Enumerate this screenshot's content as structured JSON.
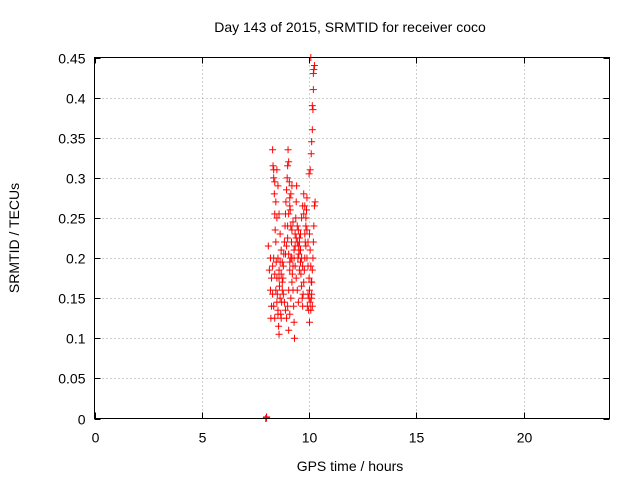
{
  "chart_data": {
    "type": "scatter",
    "title": "Day 143 of 2015, SRMTID for receiver coco",
    "xlabel": "GPS time / hours",
    "ylabel": "SRMTID / TECUs",
    "xlim": [
      0,
      24
    ],
    "ylim": [
      0,
      0.45
    ],
    "xticks": [
      0,
      5,
      10,
      15,
      20
    ],
    "yticks": [
      0,
      0.05,
      0.1,
      0.15,
      0.2,
      0.25,
      0.3,
      0.35,
      0.4,
      0.45
    ],
    "grid": true,
    "marker": "+",
    "color": "#ff0000",
    "series": [
      {
        "name": "SRMTID",
        "points": [
          [
            8.0,
            0.0
          ],
          [
            8.02,
            0.002
          ],
          [
            7.98,
            0.0
          ],
          [
            8.01,
            0.001
          ],
          [
            8.1,
            0.215
          ],
          [
            8.15,
            0.185
          ],
          [
            8.2,
            0.16
          ],
          [
            8.22,
            0.125
          ],
          [
            8.25,
            0.14
          ],
          [
            8.3,
            0.335
          ],
          [
            8.32,
            0.315
          ],
          [
            8.35,
            0.3
          ],
          [
            8.38,
            0.28
          ],
          [
            8.4,
            0.255
          ],
          [
            8.42,
            0.235
          ],
          [
            8.45,
            0.22
          ],
          [
            8.47,
            0.195
          ],
          [
            8.5,
            0.175
          ],
          [
            8.52,
            0.155
          ],
          [
            8.55,
            0.135
          ],
          [
            8.58,
            0.115
          ],
          [
            8.6,
            0.105
          ],
          [
            8.35,
            0.31
          ],
          [
            8.4,
            0.295
          ],
          [
            8.45,
            0.27
          ],
          [
            8.5,
            0.25
          ],
          [
            8.55,
            0.2
          ],
          [
            8.6,
            0.185
          ],
          [
            8.62,
            0.165
          ],
          [
            8.65,
            0.15
          ],
          [
            8.68,
            0.13
          ],
          [
            8.7,
            0.125
          ],
          [
            8.72,
            0.145
          ],
          [
            8.75,
            0.16
          ],
          [
            8.78,
            0.175
          ],
          [
            8.8,
            0.19
          ],
          [
            8.82,
            0.205
          ],
          [
            8.85,
            0.22
          ],
          [
            8.88,
            0.24
          ],
          [
            8.9,
            0.255
          ],
          [
            8.92,
            0.27
          ],
          [
            8.95,
            0.285
          ],
          [
            8.98,
            0.3
          ],
          [
            9.0,
            0.315
          ],
          [
            9.02,
            0.335
          ],
          [
            9.05,
            0.32
          ],
          [
            9.08,
            0.295
          ],
          [
            9.1,
            0.275
          ],
          [
            9.12,
            0.26
          ],
          [
            9.15,
            0.24
          ],
          [
            9.18,
            0.22
          ],
          [
            9.2,
            0.2
          ],
          [
            9.22,
            0.18
          ],
          [
            9.25,
            0.16
          ],
          [
            9.28,
            0.14
          ],
          [
            9.3,
            0.12
          ],
          [
            9.32,
            0.1
          ],
          [
            9.05,
            0.11
          ],
          [
            9.1,
            0.13
          ],
          [
            9.15,
            0.15
          ],
          [
            9.2,
            0.17
          ],
          [
            9.25,
            0.19
          ],
          [
            9.3,
            0.21
          ],
          [
            9.35,
            0.23
          ],
          [
            9.38,
            0.25
          ],
          [
            9.4,
            0.27
          ],
          [
            9.42,
            0.29
          ],
          [
            9.45,
            0.22
          ],
          [
            9.48,
            0.2
          ],
          [
            9.5,
            0.215
          ],
          [
            9.52,
            0.205
          ],
          [
            9.55,
            0.225
          ],
          [
            9.58,
            0.21
          ],
          [
            9.6,
            0.195
          ],
          [
            9.62,
            0.18
          ],
          [
            9.65,
            0.165
          ],
          [
            9.68,
            0.15
          ],
          [
            9.7,
            0.14
          ],
          [
            9.72,
            0.155
          ],
          [
            9.75,
            0.17
          ],
          [
            9.78,
            0.185
          ],
          [
            9.8,
            0.2
          ],
          [
            9.82,
            0.22
          ],
          [
            9.85,
            0.24
          ],
          [
            9.88,
            0.26
          ],
          [
            9.9,
            0.275
          ],
          [
            9.6,
            0.23
          ],
          [
            9.65,
            0.25
          ],
          [
            9.7,
            0.265
          ],
          [
            9.75,
            0.28
          ],
          [
            9.8,
            0.23
          ],
          [
            9.85,
            0.215
          ],
          [
            9.9,
            0.2
          ],
          [
            9.95,
            0.19
          ],
          [
            10.0,
            0.175
          ],
          [
            10.02,
            0.16
          ],
          [
            10.05,
            0.145
          ],
          [
            10.08,
            0.135
          ],
          [
            10.1,
            0.15
          ],
          [
            10.12,
            0.17
          ],
          [
            10.15,
            0.185
          ],
          [
            10.18,
            0.2
          ],
          [
            10.2,
            0.22
          ],
          [
            10.22,
            0.24
          ],
          [
            10.25,
            0.265
          ],
          [
            10.28,
            0.27
          ],
          [
            10.0,
            0.305
          ],
          [
            10.05,
            0.31
          ],
          [
            10.1,
            0.33
          ],
          [
            10.12,
            0.345
          ],
          [
            10.15,
            0.36
          ],
          [
            10.18,
            0.385
          ],
          [
            10.2,
            0.41
          ],
          [
            10.22,
            0.435
          ],
          [
            10.25,
            0.44
          ],
          [
            10.08,
            0.45
          ],
          [
            10.2,
            0.43
          ],
          [
            10.15,
            0.39
          ],
          [
            10.02,
            0.23
          ],
          [
            10.05,
            0.21
          ],
          [
            10.08,
            0.19
          ],
          [
            10.1,
            0.17
          ],
          [
            10.12,
            0.155
          ],
          [
            10.15,
            0.14
          ],
          [
            9.92,
            0.14
          ],
          [
            9.95,
            0.155
          ],
          [
            9.98,
            0.135
          ],
          [
            10.0,
            0.15
          ],
          [
            10.02,
            0.12
          ],
          [
            8.5,
            0.31
          ],
          [
            8.55,
            0.29
          ],
          [
            8.6,
            0.255
          ],
          [
            8.65,
            0.23
          ],
          [
            8.7,
            0.21
          ],
          [
            8.75,
            0.195
          ],
          [
            8.8,
            0.155
          ],
          [
            8.85,
            0.145
          ],
          [
            8.9,
            0.135
          ],
          [
            8.95,
            0.125
          ],
          [
            9.0,
            0.14
          ],
          [
            9.05,
            0.16
          ],
          [
            9.1,
            0.185
          ],
          [
            9.15,
            0.2
          ],
          [
            9.2,
            0.235
          ],
          [
            9.25,
            0.245
          ],
          [
            9.3,
            0.2
          ],
          [
            9.35,
            0.19
          ],
          [
            9.4,
            0.175
          ],
          [
            9.45,
            0.16
          ],
          [
            9.5,
            0.145
          ],
          [
            9.55,
            0.185
          ],
          [
            9.6,
            0.21
          ],
          [
            9.65,
            0.2
          ],
          [
            9.7,
            0.19
          ],
          [
            8.3,
            0.19
          ],
          [
            8.35,
            0.2
          ],
          [
            8.4,
            0.18
          ],
          [
            8.45,
            0.16
          ],
          [
            8.5,
            0.145
          ],
          [
            8.55,
            0.13
          ],
          [
            8.6,
            0.175
          ],
          [
            8.65,
            0.195
          ],
          [
            8.7,
            0.18
          ],
          [
            8.75,
            0.17
          ],
          [
            8.2,
            0.2
          ],
          [
            8.25,
            0.175
          ],
          [
            8.3,
            0.155
          ],
          [
            8.35,
            0.14
          ],
          [
            8.4,
            0.125
          ],
          [
            9.35,
            0.215
          ],
          [
            9.4,
            0.225
          ],
          [
            9.45,
            0.24
          ],
          [
            9.5,
            0.235
          ],
          [
            9.55,
            0.22
          ],
          [
            9.75,
            0.255
          ],
          [
            9.8,
            0.265
          ],
          [
            9.85,
            0.25
          ],
          [
            9.9,
            0.235
          ],
          [
            9.95,
            0.22
          ],
          [
            9.0,
            0.24
          ],
          [
            9.05,
            0.255
          ],
          [
            9.1,
            0.265
          ],
          [
            9.15,
            0.28
          ],
          [
            9.2,
            0.29
          ],
          [
            8.9,
            0.205
          ],
          [
            8.95,
            0.215
          ],
          [
            9.0,
            0.225
          ],
          [
            9.05,
            0.205
          ],
          [
            9.1,
            0.195
          ]
        ]
      }
    ]
  }
}
